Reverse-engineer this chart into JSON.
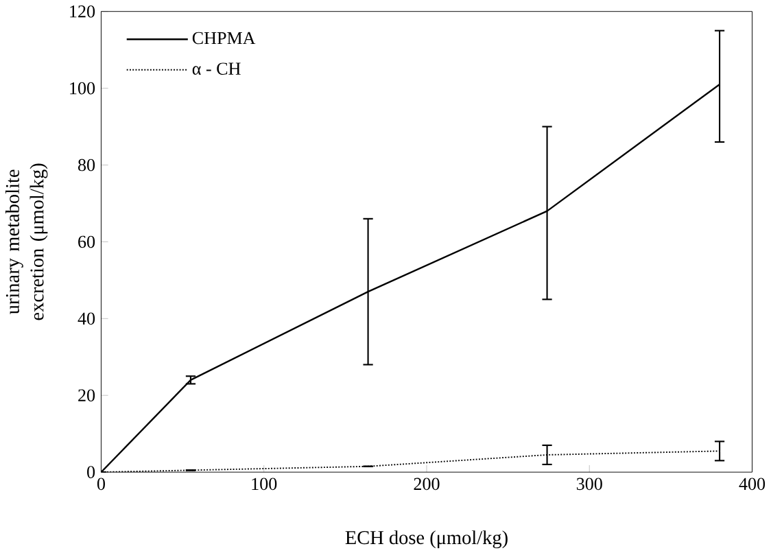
{
  "chart_data": {
    "type": "line",
    "xlabel": "ECH dose (μmol/kg)",
    "ylabel": "urinary metabolite excretion (μmol/kg)",
    "x": [
      0,
      55,
      164,
      274,
      380
    ],
    "series": [
      {
        "name": "CHPMA",
        "color": "#000000",
        "line_style": "solid",
        "values": [
          0,
          24,
          47,
          68,
          101
        ],
        "errors": [
          null,
          [
            23,
            25
          ],
          [
            28,
            66
          ],
          [
            45,
            90
          ],
          [
            86,
            115
          ]
        ]
      },
      {
        "name": "α - CH",
        "color": "#000000",
        "line_style": "dotted",
        "values": [
          0,
          0.5,
          1.5,
          4.5,
          5.5
        ],
        "errors": [
          null,
          null,
          null,
          [
            2,
            7
          ],
          [
            3,
            8
          ]
        ]
      }
    ],
    "xlim": [
      0,
      400
    ],
    "ylim": [
      0,
      120
    ],
    "xticks": [
      0,
      100,
      200,
      300,
      400
    ],
    "yticks": [
      0,
      20,
      40,
      60,
      80,
      100,
      120
    ],
    "legend": "top left",
    "marker": "none",
    "grid": false
  }
}
